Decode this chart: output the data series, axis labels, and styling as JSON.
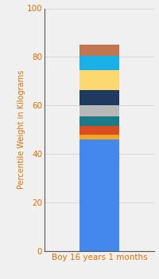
{
  "category": "Boy 16 years 1 months",
  "ylabel": "Percentile Weight in Kilograms",
  "ylim": [
    0,
    100
  ],
  "yticks": [
    0,
    20,
    40,
    60,
    80,
    100
  ],
  "segments": [
    {
      "value": 46.0,
      "color": "#4488ee"
    },
    {
      "value": 2.0,
      "color": "#f5a623"
    },
    {
      "value": 3.5,
      "color": "#d94e1f"
    },
    {
      "value": 4.0,
      "color": "#1a7a8a"
    },
    {
      "value": 4.5,
      "color": "#b8b8b8"
    },
    {
      "value": 6.5,
      "color": "#1e3a5f"
    },
    {
      "value": 8.0,
      "color": "#fdd870"
    },
    {
      "value": 6.0,
      "color": "#1ab0e8"
    },
    {
      "value": 4.5,
      "color": "#c17650"
    }
  ],
  "background_color": "#f0f0f0",
  "ylabel_fontsize": 7,
  "tick_fontsize": 7.5,
  "label_fontsize": 7.5,
  "bar_width": 0.55
}
